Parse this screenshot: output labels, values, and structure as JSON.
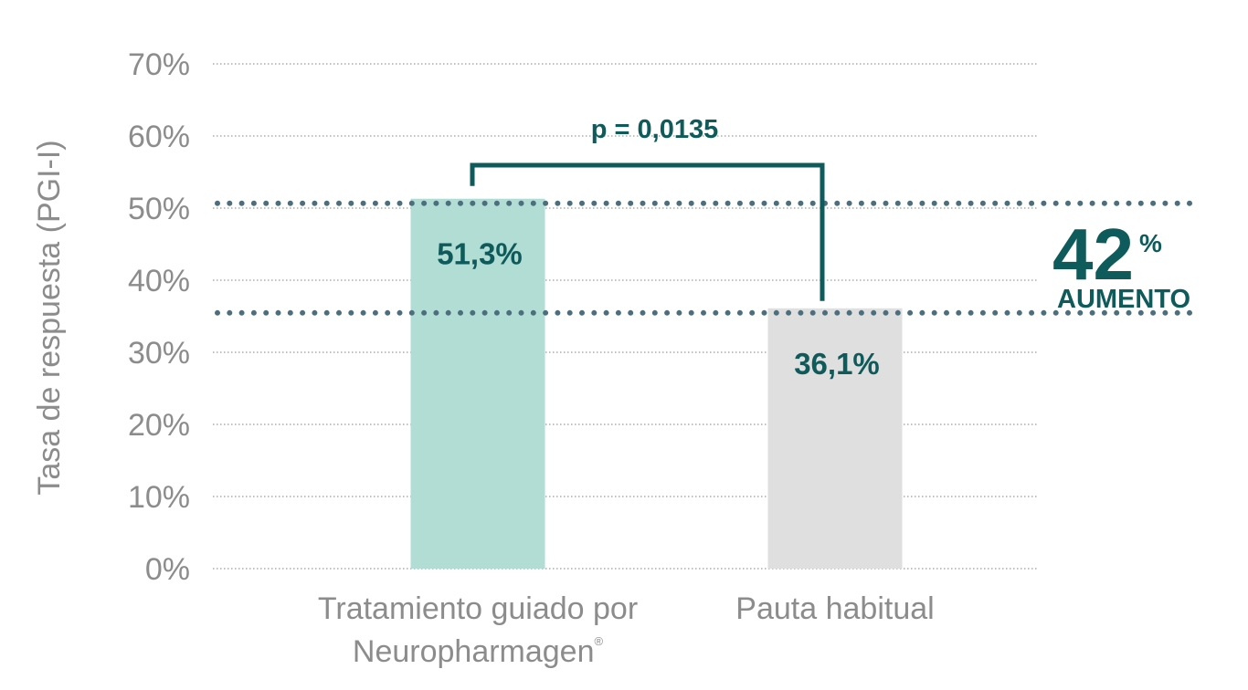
{
  "chart_data": {
    "type": "bar",
    "ylabel": "Tasa de respuesta (PGI-I)",
    "ylim": [
      0,
      70
    ],
    "yticks": [
      0,
      10,
      20,
      30,
      40,
      50,
      60,
      70
    ],
    "ytick_labels": [
      "0%",
      "10%",
      "20%",
      "30%",
      "40%",
      "50%",
      "60%",
      "70%"
    ],
    "grid": true,
    "categories": [
      {
        "lines": [
          "Tratamiento guiado por",
          "Neuropharmagen"
        ],
        "mark": "®"
      },
      {
        "lines": [
          "Pauta habitual"
        ],
        "mark": ""
      }
    ],
    "values": [
      51.3,
      36.1
    ],
    "value_labels": [
      "51,3%",
      "36,1%"
    ],
    "bar_colors": [
      "#b2ddd4",
      "#e0dfe0"
    ],
    "label_color": "#0f5a5a",
    "comparison": {
      "label": "p = 0,0135"
    },
    "increase": {
      "number": "42",
      "unit": "%",
      "text": "AUMENTO"
    },
    "colors": {
      "axis_text": "#8c8c8c",
      "accent": "#0f5a5a",
      "dots": "#4d6e7d",
      "grid": "#9a9a9a"
    }
  }
}
